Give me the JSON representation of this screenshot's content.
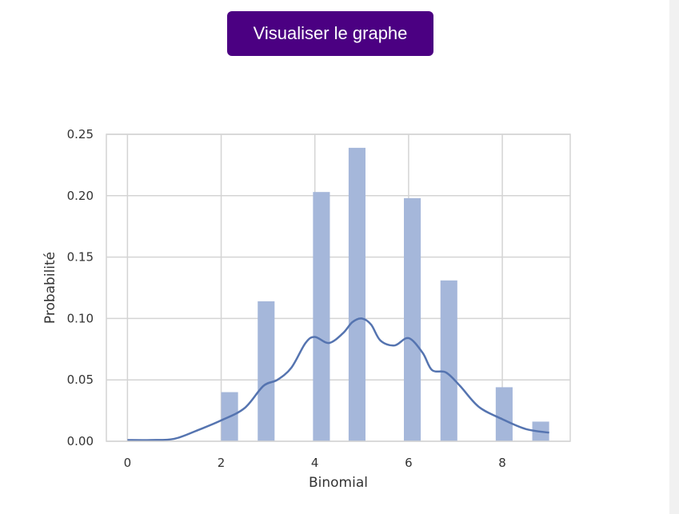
{
  "toolbar": {
    "visualize_label": "Visualiser le graphe"
  },
  "colors": {
    "button_bg": "#4b0082",
    "bar_fill": "#a5b7da",
    "kde_line": "#5574b0",
    "grid": "#d4d4d4"
  },
  "chart_data": {
    "type": "bar",
    "xlabel": "Binomial",
    "ylabel": "Probabilité",
    "xlim": [
      -0.45,
      9.45
    ],
    "ylim": [
      0,
      0.25
    ],
    "xticks": [
      0,
      2,
      4,
      6,
      8
    ],
    "yticks": [
      0.0,
      0.05,
      0.1,
      0.15,
      0.2,
      0.25
    ],
    "ytick_labels": [
      "0.00",
      "0.05",
      "0.10",
      "0.15",
      "0.20",
      "0.25"
    ],
    "grid": true,
    "bars": [
      {
        "x0": 2.0,
        "x1": 2.36,
        "value": 0.04
      },
      {
        "x0": 2.78,
        "x1": 3.14,
        "value": 0.114
      },
      {
        "x0": 3.96,
        "x1": 4.32,
        "value": 0.203
      },
      {
        "x0": 4.72,
        "x1": 5.08,
        "value": 0.239
      },
      {
        "x0": 5.9,
        "x1": 6.26,
        "value": 0.198
      },
      {
        "x0": 6.68,
        "x1": 7.04,
        "value": 0.131
      },
      {
        "x0": 7.86,
        "x1": 8.22,
        "value": 0.044
      },
      {
        "x0": 8.64,
        "x1": 9.0,
        "value": 0.016
      }
    ],
    "kde": {
      "x": [
        0,
        0.5,
        1.0,
        1.5,
        2.0,
        2.5,
        2.9,
        3.2,
        3.5,
        3.8,
        4.0,
        4.3,
        4.6,
        4.8,
        5.0,
        5.2,
        5.4,
        5.7,
        6.0,
        6.3,
        6.5,
        6.8,
        7.1,
        7.5,
        8.0,
        8.5,
        9.0
      ],
      "y": [
        0.001,
        0.001,
        0.002,
        0.009,
        0.017,
        0.027,
        0.045,
        0.05,
        0.06,
        0.08,
        0.085,
        0.08,
        0.088,
        0.097,
        0.1,
        0.095,
        0.082,
        0.078,
        0.084,
        0.072,
        0.058,
        0.056,
        0.045,
        0.028,
        0.018,
        0.01,
        0.007
      ]
    }
  }
}
